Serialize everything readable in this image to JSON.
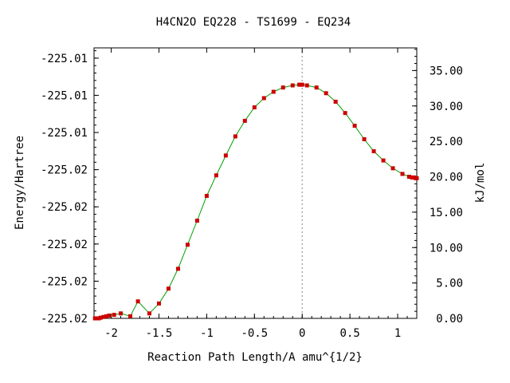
{
  "chart_data": {
    "type": "line",
    "title": "H4CN2O   EQ228 - TS1699 - EQ234",
    "xlabel": "Reaction Path Length/A amu^{1/2}",
    "ylabel_left": "Energy/Hartree",
    "ylabel_right": "kJ/mol",
    "xlim": [
      -2.18,
      1.2
    ],
    "ylim_right": [
      0,
      38.2
    ],
    "x_ticks": [
      -2,
      -1.5,
      -1,
      -0.5,
      0,
      0.5,
      1
    ],
    "x_tick_labels": [
      "-2",
      "-1.5",
      "-1",
      "-0.5",
      "0",
      "0.5",
      "1"
    ],
    "left_ticks_kjmol": [
      0,
      5.25,
      10.5,
      15.75,
      21.0,
      26.25,
      31.5,
      36.75
    ],
    "left_tick_labels": [
      "-225.02",
      "-225.02",
      "-225.02",
      "-225.02",
      "-225.02",
      "-225.01",
      "-225.01",
      "-225.01"
    ],
    "right_ticks": [
      0,
      5,
      10,
      15,
      20,
      25,
      30,
      35
    ],
    "right_tick_labels": [
      "0.00",
      "5.00",
      "10.00",
      "15.00",
      "20.00",
      "25.00",
      "30.00",
      "35.00"
    ],
    "ts_x": 0,
    "series": [
      {
        "x": [
          -2.17,
          -2.15,
          -2.13,
          -2.11,
          -2.08,
          -2.05,
          -2.02,
          -1.97,
          -1.9,
          -1.8,
          -1.72,
          -1.6,
          -1.5,
          -1.4,
          -1.3,
          -1.2,
          -1.1,
          -1.0,
          -0.9,
          -0.8,
          -0.7,
          -0.6,
          -0.5,
          -0.4,
          -0.3,
          -0.2,
          -0.1,
          -0.03,
          0.0,
          0.05,
          0.15,
          0.25,
          0.35,
          0.45,
          0.55,
          0.65,
          0.75,
          0.85,
          0.95,
          1.05,
          1.12,
          1.15,
          1.17,
          1.19,
          1.2
        ],
        "y": [
          0,
          0,
          0,
          0.1,
          0.2,
          0.3,
          0.4,
          0.5,
          0.7,
          0.3,
          2.4,
          0.7,
          2.1,
          4.2,
          7.0,
          10.4,
          13.8,
          17.3,
          20.2,
          23.0,
          25.7,
          27.9,
          29.8,
          31.1,
          32.0,
          32.6,
          32.9,
          33.0,
          33.0,
          32.9,
          32.6,
          31.8,
          30.6,
          29.0,
          27.2,
          25.3,
          23.6,
          22.3,
          21.2,
          20.4,
          20.0,
          19.9,
          19.9,
          19.8,
          19.8
        ]
      }
    ]
  }
}
